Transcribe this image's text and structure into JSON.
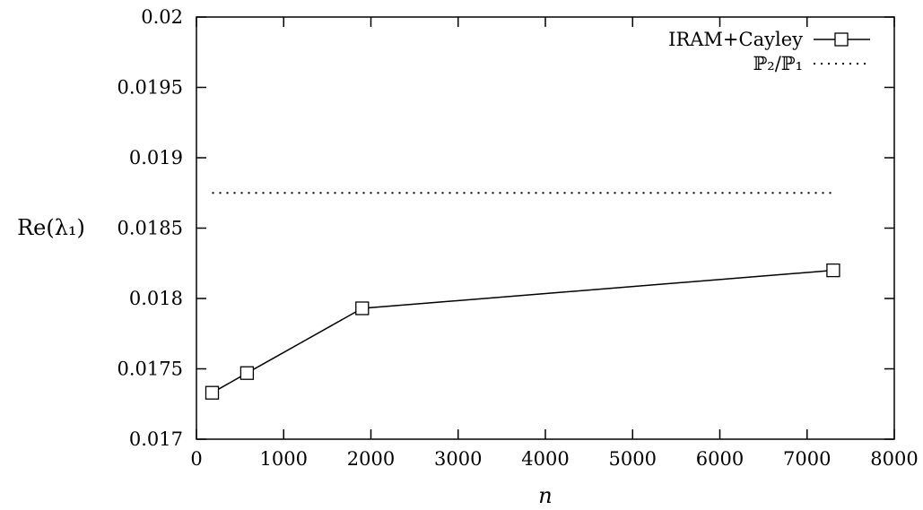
{
  "chart_data": {
    "type": "line",
    "xlabel": "n",
    "ylabel": "Re(λ₁)",
    "xlim": [
      0,
      8000
    ],
    "ylim": [
      0.017,
      0.02
    ],
    "x_ticks": [
      0,
      1000,
      2000,
      3000,
      4000,
      5000,
      6000,
      7000,
      8000
    ],
    "y_ticks": [
      0.017,
      0.0175,
      0.018,
      0.0185,
      0.019,
      0.0195,
      0.02
    ],
    "x_tick_labels": [
      "0",
      "1000",
      "2000",
      "3000",
      "4000",
      "5000",
      "6000",
      "7000",
      "8000"
    ],
    "y_tick_labels": [
      "0.017",
      "0.0175",
      "0.018",
      "0.0185",
      "0.019",
      "0.0195",
      "0.02"
    ],
    "grid": false,
    "legend_position": "top-right",
    "series": [
      {
        "name": "IRAM+Cayley",
        "style": "solid-square-markers",
        "color": "#000000",
        "x": [
          180,
          580,
          1900,
          7300
        ],
        "y": [
          0.01733,
          0.01747,
          0.01793,
          0.0182
        ]
      },
      {
        "name": "ℙ₂/ℙ₁",
        "style": "dotted",
        "color": "#000000",
        "x": [
          180,
          7300
        ],
        "y": [
          0.01875,
          0.01875
        ]
      }
    ]
  }
}
